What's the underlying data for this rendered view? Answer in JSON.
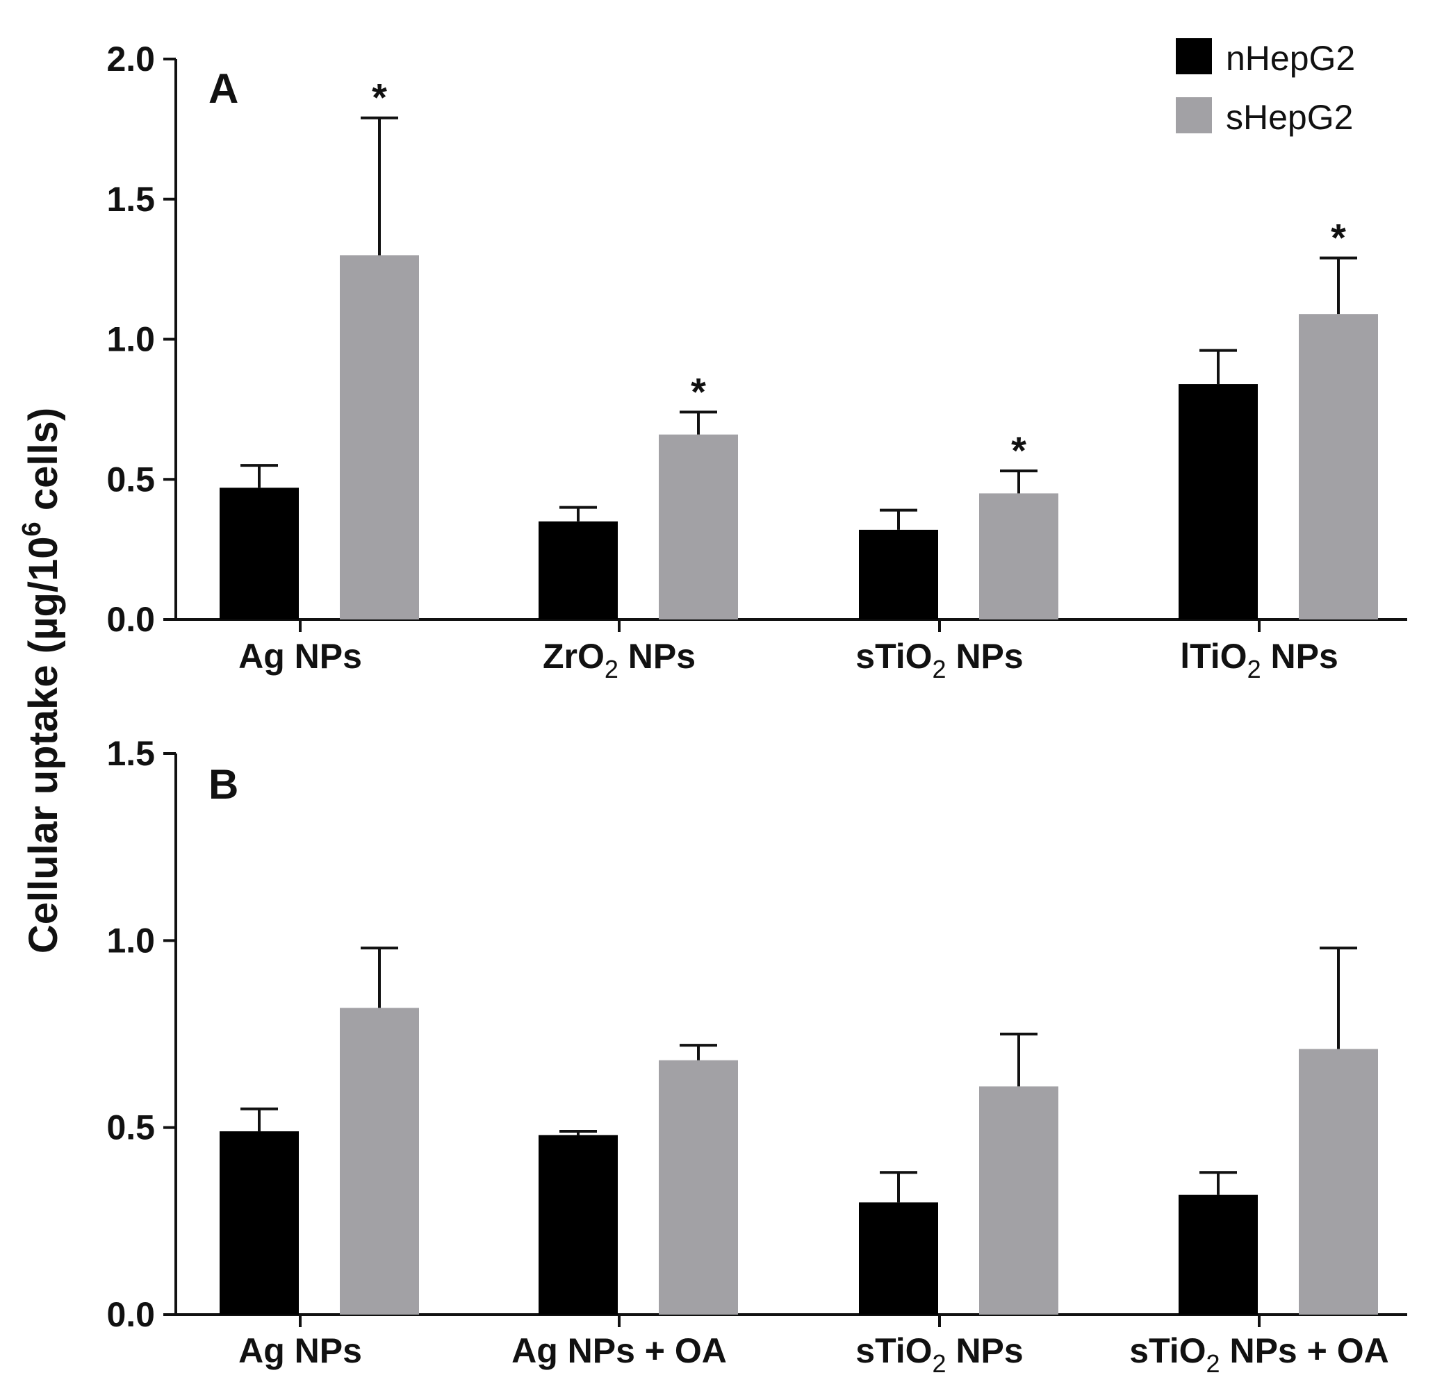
{
  "chart_data": [
    {
      "type": "bar",
      "panel_label": "A",
      "ylim": [
        0,
        2.0
      ],
      "yticks": [
        "0.0",
        "0.5",
        "1.0",
        "1.5",
        "2.0"
      ],
      "categories": [
        {
          "main": "Ag NPs",
          "sub": "",
          "post": ""
        },
        {
          "main": "ZrO",
          "sub": "2",
          "post": " NPs"
        },
        {
          "main": "sTiO",
          "sub": "2",
          "post": " NPs"
        },
        {
          "main": "lTiO",
          "sub": "2",
          "post": " NPs"
        }
      ],
      "series": [
        {
          "name": "nHepG2",
          "color": "#000000",
          "values": [
            0.47,
            0.35,
            0.32,
            0.84
          ],
          "errors": [
            0.08,
            0.05,
            0.07,
            0.12
          ],
          "significant": [
            false,
            false,
            false,
            false
          ]
        },
        {
          "name": "sHepG2",
          "color": "#a2a1a5",
          "values": [
            1.3,
            0.66,
            0.45,
            1.09
          ],
          "errors": [
            0.49,
            0.08,
            0.08,
            0.2
          ],
          "significant": [
            true,
            true,
            true,
            true
          ]
        }
      ],
      "significance_marker": "*"
    },
    {
      "type": "bar",
      "panel_label": "B",
      "ylim": [
        0,
        1.5
      ],
      "yticks": [
        "0.0",
        "0.5",
        "1.0",
        "1.5"
      ],
      "categories": [
        {
          "main": "Ag NPs",
          "sub": "",
          "post": ""
        },
        {
          "main": "Ag NPs + OA",
          "sub": "",
          "post": ""
        },
        {
          "main": "sTiO",
          "sub": "2",
          "post": " NPs"
        },
        {
          "main": "sTiO",
          "sub": "2",
          "post": " NPs + OA"
        }
      ],
      "series": [
        {
          "name": "nHepG2",
          "color": "#000000",
          "values": [
            0.49,
            0.48,
            0.3,
            0.32
          ],
          "errors": [
            0.06,
            0.01,
            0.08,
            0.06
          ],
          "significant": [
            false,
            false,
            false,
            false
          ]
        },
        {
          "name": "sHepG2",
          "color": "#a2a1a5",
          "values": [
            0.82,
            0.68,
            0.61,
            0.71
          ],
          "errors": [
            0.16,
            0.04,
            0.14,
            0.27
          ],
          "significant": [
            false,
            false,
            false,
            false
          ]
        }
      ],
      "significance_marker": "*"
    }
  ],
  "y_title": {
    "text": "Cellular uptake (µg/10",
    "sup": "6",
    "post": " cells)"
  },
  "legend": {
    "placement": "top-right",
    "items": [
      {
        "label": "nHepG2",
        "color": "#000000"
      },
      {
        "label": "sHepG2",
        "color": "#a2a1a5"
      }
    ]
  }
}
